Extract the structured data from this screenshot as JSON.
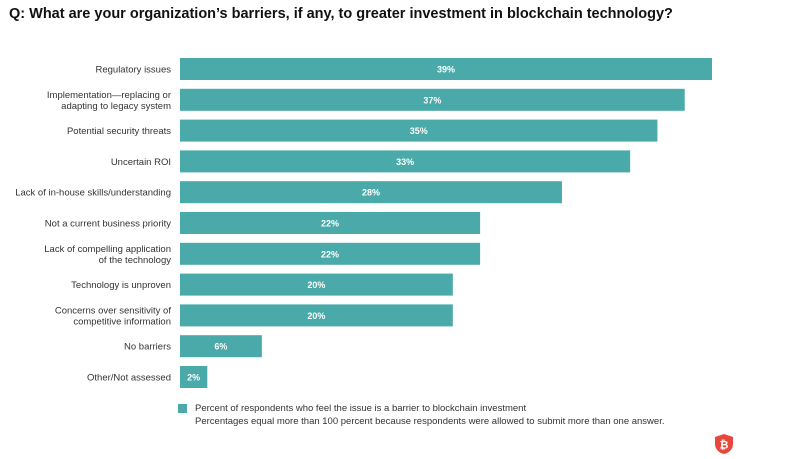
{
  "title": "Q: What are your organization’s barriers, if any, to greater investment in blockchain technology?",
  "legend": {
    "series_label": "Percent of respondents who feel the issue is a barrier to blockchain investment",
    "note": "Percentages equal more than 100 percent because respondents were allowed to submit more than one answer."
  },
  "colors": {
    "bar": "#4aa9a9",
    "logo": "#e8473b"
  },
  "logo_icon": "bitcoin-shield-icon",
  "chart_data": {
    "type": "bar",
    "orientation": "horizontal",
    "categories": [
      [
        "Regulatory issues"
      ],
      [
        "Implementation—replacing or",
        "adapting to legacy system"
      ],
      [
        "Potential security threats"
      ],
      [
        "Uncertain ROI"
      ],
      [
        "Lack of in-house skills/understanding"
      ],
      [
        "Not a current business priority"
      ],
      [
        "Lack of compelling application",
        "of the technology"
      ],
      [
        "Technology is unproven"
      ],
      [
        "Concerns over sensitivity of",
        "competitive information"
      ],
      [
        "No barriers"
      ],
      [
        "Other/Not assessed"
      ]
    ],
    "values": [
      39,
      37,
      35,
      33,
      28,
      22,
      22,
      20,
      20,
      6,
      2
    ],
    "value_labels": [
      "39%",
      "37%",
      "35%",
      "33%",
      "28%",
      "22%",
      "22%",
      "20%",
      "20%",
      "6%",
      "2%"
    ],
    "xlim": [
      0,
      39
    ],
    "grid": false
  }
}
